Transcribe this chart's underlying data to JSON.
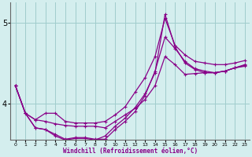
{
  "xlabel": "Windchill (Refroidissement éolien,°C)",
  "background_color": "#d4eeee",
  "grid_color": "#a0cccc",
  "line_color": "#880088",
  "xlim": [
    -0.5,
    23.5
  ],
  "ylim": [
    3.55,
    5.25
  ],
  "yticks": [
    4,
    5
  ],
  "xticks": [
    0,
    1,
    2,
    3,
    4,
    5,
    6,
    7,
    8,
    9,
    10,
    11,
    12,
    13,
    14,
    15,
    16,
    17,
    18,
    19,
    20,
    21,
    22,
    23
  ],
  "line1_x": [
    0,
    1,
    2,
    3,
    4,
    5,
    6,
    7,
    8,
    9,
    10,
    11,
    12,
    13,
    14,
    15,
    16,
    17,
    18,
    19,
    20,
    21,
    22,
    23
  ],
  "line1_y": [
    4.22,
    3.88,
    3.8,
    3.78,
    3.75,
    3.73,
    3.72,
    3.72,
    3.72,
    3.7,
    3.78,
    3.86,
    3.94,
    4.05,
    4.22,
    4.58,
    4.48,
    4.36,
    4.37,
    4.38,
    4.38,
    4.4,
    4.44,
    4.47
  ],
  "line2_x": [
    0,
    1,
    2,
    3,
    4,
    5,
    6,
    7,
    8,
    9,
    10,
    11,
    12,
    13,
    14,
    15,
    16,
    17,
    18,
    19,
    20,
    21,
    22,
    23
  ],
  "line2_y": [
    4.22,
    3.88,
    3.8,
    3.88,
    3.88,
    3.78,
    3.76,
    3.76,
    3.76,
    3.78,
    3.86,
    3.96,
    4.14,
    4.32,
    4.58,
    5.05,
    4.72,
    4.6,
    4.52,
    4.5,
    4.48,
    4.48,
    4.5,
    4.53
  ],
  "line3_x": [
    0,
    1,
    2,
    3,
    4,
    5,
    6,
    7,
    8,
    9,
    10,
    11,
    12,
    13,
    14,
    15,
    16,
    17,
    18,
    19,
    20,
    21,
    22,
    23
  ],
  "line3_y": [
    4.22,
    3.88,
    3.7,
    3.68,
    3.62,
    3.56,
    3.58,
    3.58,
    3.56,
    3.56,
    3.68,
    3.78,
    3.9,
    4.1,
    4.4,
    4.82,
    4.68,
    4.52,
    4.43,
    4.4,
    4.38,
    4.4,
    4.44,
    4.48
  ],
  "line4_x": [
    0,
    1,
    2,
    3,
    4,
    5,
    6,
    7,
    8,
    9,
    10,
    11,
    12,
    13,
    14,
    15,
    16,
    17,
    18,
    19,
    20,
    21,
    22,
    23
  ],
  "line4_y": [
    4.22,
    3.88,
    3.7,
    3.68,
    3.6,
    3.55,
    3.57,
    3.57,
    3.55,
    3.6,
    3.72,
    3.82,
    3.95,
    4.12,
    4.38,
    5.1,
    4.7,
    4.5,
    4.42,
    4.38,
    4.38,
    4.4,
    4.44,
    4.46
  ],
  "marker": "+",
  "markersize": 3,
  "linewidth": 0.9
}
